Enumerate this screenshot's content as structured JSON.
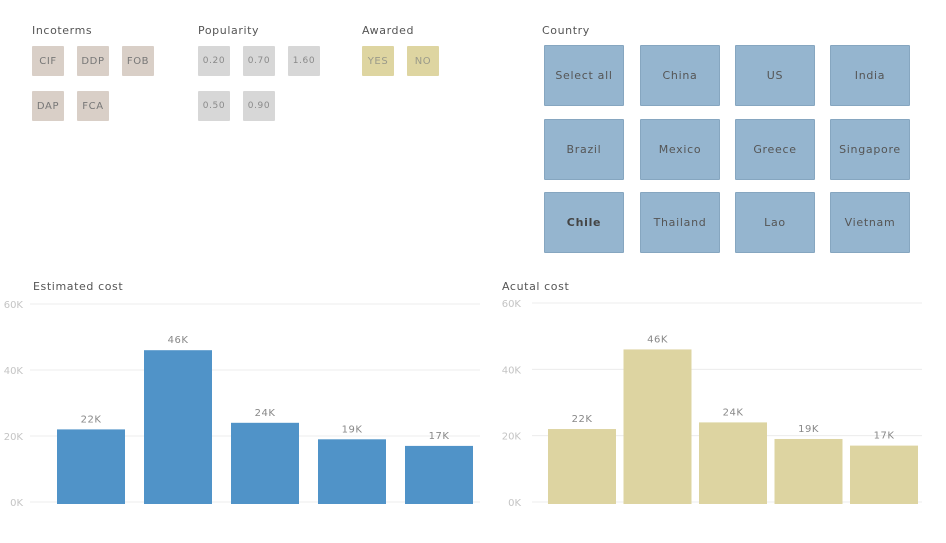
{
  "filters": {
    "incoterms": {
      "title": "Incoterms",
      "options": [
        "CIF",
        "DDP",
        "FOB",
        "DAP",
        "FCA"
      ]
    },
    "popularity": {
      "title": "Popularity",
      "options": [
        "0.20",
        "0.70",
        "1.60",
        "0.50",
        "0.90"
      ]
    },
    "awarded": {
      "title": "Awarded",
      "options": [
        "YES",
        "NO"
      ]
    },
    "country": {
      "title": "Country",
      "options": [
        "Select all",
        "China",
        "US",
        "India",
        "Brazil",
        "Mexico",
        "Greece",
        "Singapore",
        "Chile",
        "Thailand",
        "Lao",
        "Vietnam"
      ],
      "emphasized": "Chile"
    }
  },
  "colors": {
    "estimated": "#5093c8",
    "actual": "#ddd4a1",
    "incoterm_chip": "#d9cfc7",
    "popularity_chip": "#d7d7d7",
    "awarded_chip": "#ded5a1",
    "country_chip": "#95b5cf"
  },
  "chart_data": [
    {
      "type": "bar",
      "title": "Estimated cost",
      "values": [
        22000,
        46000,
        24000,
        19000,
        17000
      ],
      "value_labels": [
        "22K",
        "46K",
        "24K",
        "19K",
        "17K"
      ],
      "yticks": [
        "0K",
        "20K",
        "40K",
        "60K"
      ],
      "ylim": [
        0,
        60000
      ],
      "grid": true
    },
    {
      "type": "bar",
      "title": "Acutal cost",
      "values": [
        22000,
        46000,
        24000,
        19000,
        17000
      ],
      "value_labels": [
        "22K",
        "46K",
        "24K",
        "19K",
        "17K"
      ],
      "yticks": [
        "0K",
        "20K",
        "40K",
        "60K"
      ],
      "ylim": [
        0,
        60000
      ],
      "grid": true
    }
  ]
}
